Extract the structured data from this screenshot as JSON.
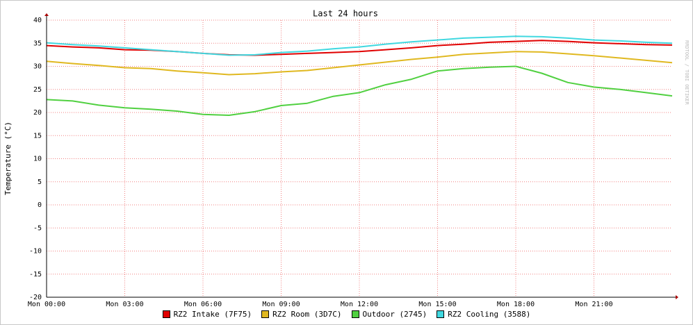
{
  "chart_data": {
    "type": "line",
    "title": "Last 24 hours",
    "y_label": "Temperature (°C)",
    "watermark": "RRDTOOL / TOBI OETIKER",
    "x": [
      0,
      1,
      2,
      3,
      4,
      5,
      6,
      7,
      8,
      9,
      10,
      11,
      12,
      13,
      14,
      15,
      16,
      17,
      18,
      19,
      20,
      21,
      22,
      23,
      24
    ],
    "xlim": [
      0,
      24
    ],
    "xticks": [
      {
        "value": 0,
        "label": "Mon 00:00"
      },
      {
        "value": 3,
        "label": "Mon 03:00"
      },
      {
        "value": 6,
        "label": "Mon 06:00"
      },
      {
        "value": 9,
        "label": "Mon 09:00"
      },
      {
        "value": 12,
        "label": "Mon 12:00"
      },
      {
        "value": 15,
        "label": "Mon 15:00"
      },
      {
        "value": 18,
        "label": "Mon 18:00"
      },
      {
        "value": 21,
        "label": "Mon 21:00"
      }
    ],
    "ylim": [
      -20,
      40
    ],
    "yticks": [
      40,
      35,
      30,
      25,
      20,
      15,
      10,
      5,
      0,
      -5,
      -10,
      -15,
      -20
    ],
    "grid": true,
    "legend": "bottom",
    "series": [
      {
        "name": "RZ2 Intake (7F75)",
        "color": "#e00000",
        "values": [
          34.5,
          34.2,
          34,
          33.6,
          33.5,
          33.2,
          32.8,
          32.5,
          32.4,
          32.6,
          32.8,
          33,
          33.2,
          33.6,
          34,
          34.5,
          34.8,
          35.2,
          35.4,
          35.6,
          35.4,
          35.1,
          34.9,
          34.7,
          34.6
        ]
      },
      {
        "name": "RZ2 Room (3D7C)",
        "color": "#e0b820",
        "values": [
          31.1,
          30.6,
          30.2,
          29.7,
          29.5,
          29,
          28.6,
          28.2,
          28.4,
          28.8,
          29.1,
          29.7,
          30.3,
          30.9,
          31.5,
          32,
          32.6,
          32.9,
          33.2,
          33.1,
          32.7,
          32.3,
          31.8,
          31.3,
          30.8
        ]
      },
      {
        "name": "Outdoor (2745)",
        "color": "#50d040",
        "values": [
          22.8,
          22.5,
          21.6,
          21,
          20.7,
          20.3,
          19.6,
          19.4,
          20.2,
          21.5,
          22,
          23.5,
          24.3,
          26,
          27.2,
          29,
          29.5,
          29.8,
          30,
          28.5,
          26.5,
          25.5,
          25,
          24.3,
          23.6
        ]
      },
      {
        "name": "RZ2 Cooling (3588)",
        "color": "#40d8e0",
        "values": [
          35.1,
          34.7,
          34.4,
          34,
          33.6,
          33.2,
          32.8,
          32.4,
          32.5,
          33,
          33.3,
          33.8,
          34.2,
          34.8,
          35.3,
          35.7,
          36.1,
          36.3,
          36.5,
          36.4,
          36.1,
          35.7,
          35.5,
          35.2,
          35
        ]
      }
    ]
  }
}
